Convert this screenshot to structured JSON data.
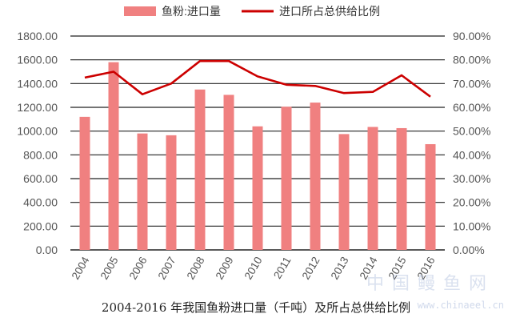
{
  "chart_data": {
    "type": "bar+line",
    "categories": [
      "2004",
      "2005",
      "2006",
      "2007",
      "2008",
      "2009",
      "2010",
      "2011",
      "2012",
      "2013",
      "2014",
      "2015",
      "2016"
    ],
    "series": [
      {
        "name": "鱼粉:进口量",
        "type": "bar",
        "axis": "left",
        "values": [
          1120,
          1580,
          980,
          965,
          1350,
          1305,
          1040,
          1205,
          1240,
          975,
          1035,
          1025,
          890
        ]
      },
      {
        "name": "进口所占总供给比例",
        "type": "line",
        "axis": "right",
        "values": [
          72.5,
          75.0,
          65.5,
          70.0,
          79.5,
          79.5,
          73.0,
          69.5,
          69.0,
          66.0,
          66.5,
          73.5,
          64.5
        ]
      }
    ],
    "y_left": {
      "min": 0,
      "max": 1800,
      "step": 200,
      "tick_labels": [
        "0.00",
        "200.00",
        "400.00",
        "600.00",
        "800.00",
        "1000.00",
        "1200.00",
        "1400.00",
        "1600.00",
        "1800.00"
      ]
    },
    "y_right": {
      "min": 0,
      "max": 90,
      "step": 10,
      "tick_labels": [
        "0.00%",
        "10.00%",
        "20.00%",
        "30.00%",
        "40.00%",
        "50.00%",
        "60.00%",
        "70.00%",
        "80.00%",
        "90.00%"
      ]
    },
    "legend_position": "top",
    "grid": true,
    "colors": {
      "bar": "#f08080",
      "line": "#cc0000",
      "grid": "#222222",
      "axis_text": "#555555"
    }
  },
  "caption": "2004-2016 年我国鱼粉进口量（千吨）及所占总供给比例",
  "watermark": {
    "text": "中国鳗鱼网",
    "url": "www.chinaeel.cn"
  }
}
